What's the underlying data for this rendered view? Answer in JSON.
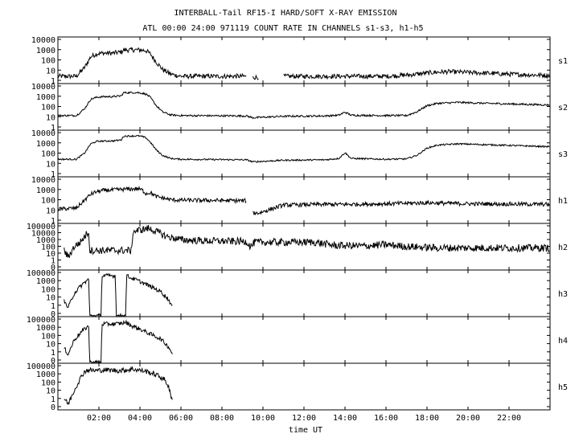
{
  "chart_data": {
    "type": "line",
    "title": "INTERBALL-Tail RF15-I HARD/SOFT X-RAY EMISSION",
    "subtitle": "ATL 00:00 24:00 971119  COUNT RATE IN CHANNELS s1-s3, h1-h5",
    "xlabel": "time UT",
    "xlim": [
      0,
      24
    ],
    "x_ticks": [
      "02:00",
      "04:00",
      "06:00",
      "08:00",
      "10:00",
      "12:00",
      "14:00",
      "16:00",
      "18:00",
      "20:00",
      "22:00"
    ],
    "x_tick_values": [
      2,
      4,
      6,
      8,
      10,
      12,
      14,
      16,
      18,
      20,
      22
    ],
    "y_scale": "log",
    "grid": false,
    "panels": [
      {
        "name": "s1",
        "ylim": [
          1,
          10000
        ],
        "ticks": [
          "10000",
          "1000",
          "100",
          "10",
          "1"
        ],
        "points": [
          [
            0,
            2.5
          ],
          [
            0.9,
            2.5
          ],
          [
            1.3,
            18
          ],
          [
            1.6,
            200
          ],
          [
            1.9,
            400
          ],
          [
            2.2,
            450
          ],
          [
            2.7,
            460
          ],
          [
            3.1,
            600
          ],
          [
            3.2,
            900
          ],
          [
            3.9,
            950
          ],
          [
            4.1,
            900
          ],
          [
            4.3,
            800
          ],
          [
            4.5,
            400
          ],
          [
            4.8,
            60
          ],
          [
            5.1,
            12
          ],
          [
            5.5,
            4
          ],
          [
            6,
            2.5
          ],
          [
            9.2,
            2.5
          ]
        ],
        "gaps": [
          [
            9.2,
            9.5
          ],
          [
            9.8,
            11.0
          ]
        ],
        "rest": [
          [
            9.5,
            2
          ],
          [
            9.8,
            2
          ],
          [
            11.0,
            2.5
          ],
          [
            13,
            2.5
          ],
          [
            14,
            2.5
          ],
          [
            16,
            2.5
          ],
          [
            17.2,
            3.5
          ],
          [
            18.3,
            6
          ],
          [
            19,
            7
          ],
          [
            20,
            6
          ],
          [
            22,
            4
          ],
          [
            24,
            3
          ]
        ],
        "noise": 0.45
      },
      {
        "name": "s2",
        "ylim": [
          1,
          10000
        ],
        "ticks": [
          "10000",
          "1000",
          "100",
          "10",
          "1"
        ],
        "points": [
          [
            0,
            13
          ],
          [
            0.9,
            13
          ],
          [
            1.3,
            60
          ],
          [
            1.6,
            500
          ],
          [
            1.9,
            800
          ],
          [
            2.2,
            900
          ],
          [
            2.7,
            920
          ],
          [
            3.1,
            1100
          ],
          [
            3.2,
            2200
          ],
          [
            3.9,
            2300
          ],
          [
            4.1,
            2000
          ],
          [
            4.3,
            1600
          ],
          [
            4.5,
            800
          ],
          [
            4.8,
            120
          ],
          [
            5.1,
            30
          ],
          [
            5.5,
            15
          ],
          [
            6,
            13
          ],
          [
            9.2,
            12
          ],
          [
            9.5,
            8
          ],
          [
            11,
            11
          ],
          [
            13,
            12
          ],
          [
            13.7,
            14
          ],
          [
            14.0,
            28
          ],
          [
            14.3,
            14
          ],
          [
            16,
            13
          ],
          [
            17,
            13
          ],
          [
            17.5,
            30
          ],
          [
            18,
            120
          ],
          [
            18.5,
            200
          ],
          [
            19.5,
            250
          ],
          [
            21,
            200
          ],
          [
            24,
            140
          ]
        ],
        "noise": 0.18
      },
      {
        "name": "s3",
        "ylim": [
          1,
          10000
        ],
        "ticks": [
          "10000",
          "1000",
          "100",
          "10",
          "1"
        ],
        "points": [
          [
            0,
            25
          ],
          [
            0.9,
            25
          ],
          [
            1.3,
            100
          ],
          [
            1.6,
            800
          ],
          [
            1.9,
            1400
          ],
          [
            2.2,
            1500
          ],
          [
            2.7,
            1550
          ],
          [
            3.1,
            2000
          ],
          [
            3.2,
            4500
          ],
          [
            3.9,
            4800
          ],
          [
            4.1,
            4200
          ],
          [
            4.3,
            3000
          ],
          [
            4.5,
            1200
          ],
          [
            4.8,
            200
          ],
          [
            5.1,
            60
          ],
          [
            5.5,
            30
          ],
          [
            6,
            25
          ],
          [
            9.2,
            22
          ],
          [
            9.5,
            14
          ],
          [
            11,
            20
          ],
          [
            13,
            22
          ],
          [
            13.7,
            30
          ],
          [
            14.0,
            110
          ],
          [
            14.3,
            30
          ],
          [
            16,
            25
          ],
          [
            17,
            27
          ],
          [
            17.5,
            60
          ],
          [
            18,
            300
          ],
          [
            18.5,
            600
          ],
          [
            19.5,
            800
          ],
          [
            21,
            650
          ],
          [
            24,
            420
          ]
        ],
        "noise": 0.15
      },
      {
        "name": "h1",
        "ylim": [
          1,
          10000
        ],
        "ticks": [
          "10000",
          "1000",
          "100",
          "10",
          "1"
        ],
        "points": [
          [
            0,
            12
          ],
          [
            0.9,
            15
          ],
          [
            1.3,
            90
          ],
          [
            1.6,
            350
          ],
          [
            1.9,
            600
          ],
          [
            2.2,
            800
          ],
          [
            2.7,
            900
          ],
          [
            3.1,
            1000
          ],
          [
            3.9,
            1200
          ],
          [
            4.1,
            900
          ],
          [
            4.3,
            400
          ],
          [
            4.5,
            500
          ],
          [
            4.8,
            200
          ],
          [
            5.1,
            150
          ],
          [
            5.5,
            100
          ],
          [
            6,
            90
          ],
          [
            9.2,
            80
          ]
        ],
        "gaps": [
          [
            9.2,
            9.5
          ]
        ],
        "rest": [
          [
            9.5,
            5
          ],
          [
            9.8,
            5
          ],
          [
            11.0,
            30
          ],
          [
            13,
            35
          ],
          [
            14,
            35
          ],
          [
            16,
            40
          ],
          [
            18,
            50
          ],
          [
            19,
            45
          ],
          [
            20,
            40
          ],
          [
            22,
            38
          ],
          [
            24,
            35
          ]
        ],
        "noise": 0.4
      },
      {
        "name": "h2",
        "ylim": [
          1,
          100000
        ],
        "ticks": [
          "100000",
          "10000",
          "1000",
          "100",
          "10",
          "1",
          "0"
        ],
        "points": [
          [
            0.3,
            100
          ],
          [
            0.5,
            15
          ],
          [
            0.8,
            300
          ],
          [
            1.1,
            1000
          ],
          [
            1.3,
            5000
          ],
          [
            1.5,
            20000
          ],
          [
            1.55,
            100
          ],
          [
            3.6,
            100
          ],
          [
            3.65,
            20000
          ],
          [
            4.0,
            30000
          ],
          [
            4.4,
            50000
          ],
          [
            4.8,
            20000
          ],
          [
            5.3,
            5000
          ],
          [
            6.0,
            2000
          ],
          [
            7,
            1500
          ],
          [
            9.2,
            1200
          ],
          [
            9.4,
            300
          ],
          [
            9.6,
            1000
          ],
          [
            12.5,
            1000
          ],
          [
            13.5,
            400
          ],
          [
            15,
            350
          ],
          [
            16,
            500
          ],
          [
            17,
            300
          ],
          [
            18.5,
            200
          ],
          [
            24,
            200
          ]
        ],
        "noise": 0.9
      },
      {
        "name": "h3",
        "ylim": [
          1,
          100000
        ],
        "ticks": [
          "100000",
          "1000",
          "100",
          "10",
          "1",
          "0"
        ],
        "points": [
          [
            0.3,
            30
          ],
          [
            0.5,
            5
          ],
          [
            0.8,
            300
          ],
          [
            1.1,
            2000
          ],
          [
            1.3,
            6000
          ],
          [
            1.5,
            15000
          ],
          [
            1.55,
            0.5
          ],
          [
            2.1,
            0.5
          ],
          [
            2.15,
            40000
          ],
          [
            2.8,
            40000
          ],
          [
            2.85,
            0.5
          ],
          [
            3.3,
            0.5
          ],
          [
            3.35,
            40000
          ],
          [
            3.6,
            20000
          ],
          [
            4.0,
            8000
          ],
          [
            4.5,
            2000
          ],
          [
            5.0,
            500
          ],
          [
            5.4,
            50
          ],
          [
            5.6,
            5
          ]
        ],
        "noise": 0.5
      },
      {
        "name": "h4",
        "ylim": [
          1,
          100000
        ],
        "ticks": [
          "100000",
          "1000",
          "100",
          "10",
          "1",
          "0"
        ],
        "points": [
          [
            0.3,
            30
          ],
          [
            0.5,
            5
          ],
          [
            0.8,
            300
          ],
          [
            1.1,
            2000
          ],
          [
            1.3,
            6000
          ],
          [
            1.5,
            15000
          ],
          [
            1.55,
            0.5
          ],
          [
            2.1,
            0.5
          ],
          [
            2.15,
            25000
          ],
          [
            2.8,
            25000
          ],
          [
            3.1,
            30000
          ],
          [
            3.3,
            40000
          ],
          [
            3.6,
            15000
          ],
          [
            4.0,
            6000
          ],
          [
            4.5,
            1500
          ],
          [
            5.0,
            400
          ],
          [
            5.4,
            40
          ],
          [
            5.6,
            5
          ]
        ],
        "noise": 0.5
      },
      {
        "name": "h5",
        "ylim": [
          1,
          100000
        ],
        "ticks": [
          "100000",
          "1000",
          "100",
          "10",
          "1",
          "0"
        ],
        "points": [
          [
            0.3,
            10
          ],
          [
            0.5,
            2
          ],
          [
            0.8,
            100
          ],
          [
            1.1,
            3000
          ],
          [
            1.3,
            20000
          ],
          [
            1.5,
            30000
          ],
          [
            1.8,
            25000
          ],
          [
            2.3,
            30000
          ],
          [
            3.0,
            25000
          ],
          [
            3.4,
            30000
          ],
          [
            3.6,
            40000
          ],
          [
            3.9,
            30000
          ],
          [
            4.3,
            20000
          ],
          [
            4.8,
            8000
          ],
          [
            5.2,
            2000
          ],
          [
            5.4,
            300
          ],
          [
            5.5,
            20
          ],
          [
            5.6,
            3
          ]
        ],
        "noise": 0.6
      }
    ]
  }
}
